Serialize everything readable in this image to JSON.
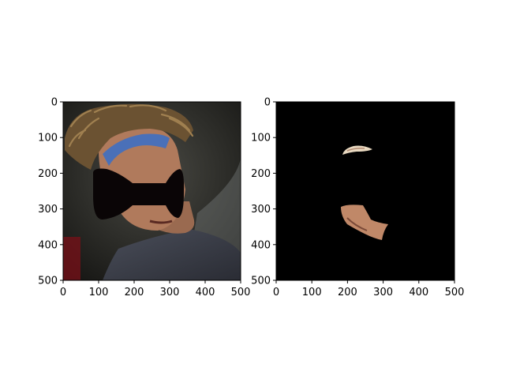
{
  "figure": {
    "background": "#ffffff",
    "panels": [
      {
        "id": "photo",
        "content": "photograph of a tennis player with dreadlocks and a blue headband; face region occluded by a black bow-tie shaped mask",
        "colors": {
          "mask": "#0a0506",
          "headband": "#4a70b8",
          "shirt": "#3a3d48",
          "skin": "#b07a5c",
          "background": "#2a2a26"
        }
      },
      {
        "id": "mask-result",
        "content": "mostly black image with only small skin-colored regions visible (forehead strip and chin/neck area)",
        "colors": {
          "background": "#000000",
          "skin": "#c89070",
          "highlight": "#e8d8c0"
        }
      }
    ]
  },
  "chart_data": [
    {
      "type": "image",
      "title": "",
      "xlabel": "",
      "ylabel": "",
      "xlim": [
        0,
        500
      ],
      "ylim": [
        500,
        0
      ],
      "xticks": [
        0,
        100,
        200,
        300,
        400,
        500
      ],
      "yticks": [
        0,
        100,
        200,
        300,
        400,
        500
      ],
      "xtick_labels": [
        "0",
        "100",
        "200",
        "300",
        "400",
        "500"
      ],
      "ytick_labels": [
        "0",
        "100",
        "200",
        "300",
        "400",
        "500"
      ],
      "grid": false
    },
    {
      "type": "image",
      "title": "",
      "xlabel": "",
      "ylabel": "",
      "xlim": [
        0,
        500
      ],
      "ylim": [
        500,
        0
      ],
      "xticks": [
        0,
        100,
        200,
        300,
        400,
        500
      ],
      "yticks": [
        0,
        100,
        200,
        300,
        400,
        500
      ],
      "xtick_labels": [
        "0",
        "100",
        "200",
        "300",
        "400",
        "500"
      ],
      "ytick_labels": [
        "0",
        "100",
        "200",
        "300",
        "400",
        "500"
      ],
      "grid": false
    }
  ]
}
